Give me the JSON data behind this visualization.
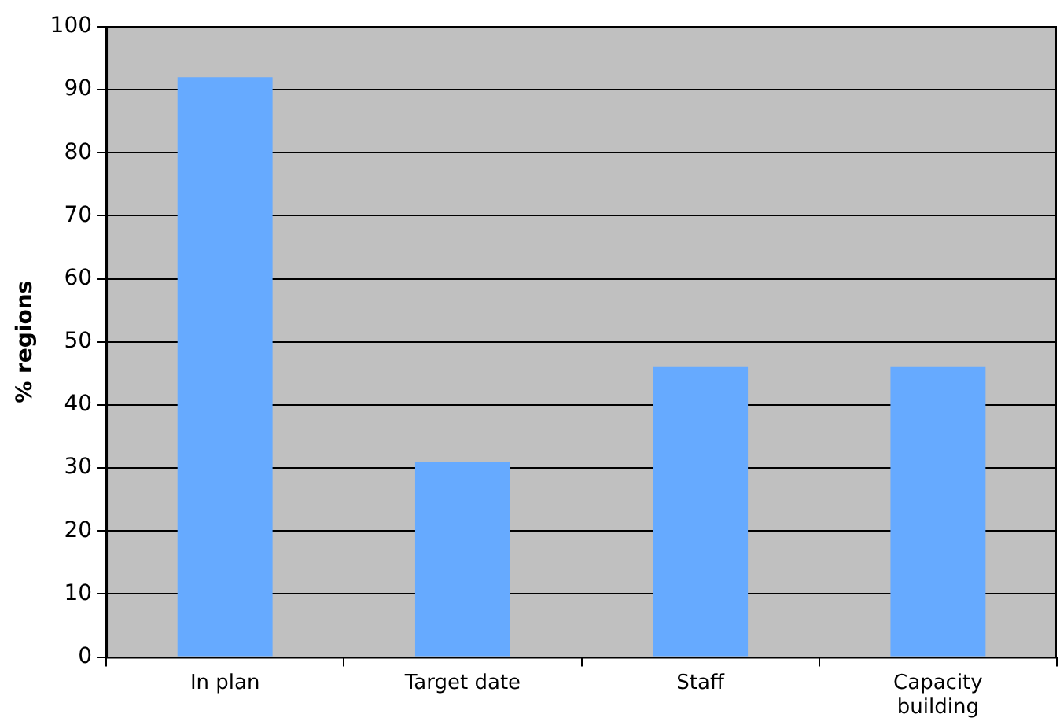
{
  "chart_data": {
    "type": "bar",
    "ylabel": "% regions",
    "categories": [
      "In plan",
      "Target date",
      "Staff",
      "Capacity building"
    ],
    "values": [
      92,
      31,
      46,
      46
    ],
    "color": "#66aaff",
    "ylim": [
      0,
      100
    ],
    "yticks": [
      0,
      10,
      20,
      30,
      40,
      50,
      60,
      70,
      80,
      90,
      100
    ],
    "grid": "y",
    "legend": false
  }
}
